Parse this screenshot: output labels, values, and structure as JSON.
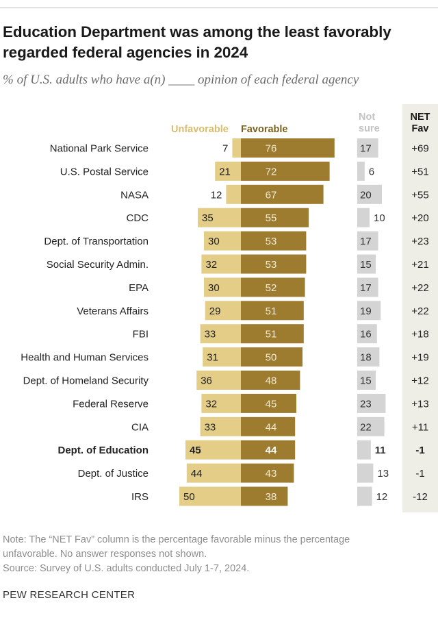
{
  "title": "Education Department was among the least favorably regarded federal agencies in 2024",
  "subtitle": "% of U.S. adults who have a(n) ____ opinion of each federal agency",
  "colors": {
    "unfavorable": "#e3cd87",
    "favorable": "#9e7c2f",
    "not_sure": "#d4d4d4",
    "net_bg": "#eeede6"
  },
  "chart_data": {
    "type": "bar",
    "orientation": "horizontal",
    "stacked": "diverging",
    "column_headers": {
      "unfavorable": "Unfavorable",
      "favorable": "Favorable",
      "not_sure": "Not sure",
      "net": "NET Fav"
    },
    "categories": [
      "National Park Service",
      "U.S. Postal Service",
      "NASA",
      "CDC",
      "Dept. of Transportation",
      "Social Security Admin.",
      "EPA",
      "Veterans Affairs",
      "FBI",
      "Health and Human Services",
      "Dept. of Homeland Security",
      "Federal Reserve",
      "CIA",
      "Dept. of Education",
      "Dept. of Justice",
      "IRS"
    ],
    "highlight": "Dept. of Education",
    "series": [
      {
        "name": "Unfavorable",
        "values": [
          7,
          21,
          12,
          35,
          30,
          32,
          30,
          29,
          33,
          31,
          36,
          32,
          33,
          45,
          44,
          50
        ]
      },
      {
        "name": "Favorable",
        "values": [
          76,
          72,
          67,
          55,
          53,
          53,
          52,
          51,
          51,
          50,
          48,
          45,
          44,
          44,
          43,
          38
        ]
      },
      {
        "name": "Not sure",
        "values": [
          17,
          6,
          20,
          10,
          17,
          15,
          17,
          19,
          16,
          18,
          15,
          23,
          22,
          11,
          13,
          12
        ]
      }
    ],
    "net_fav": [
      "+69",
      "+51",
      "+55",
      "+20",
      "+23",
      "+21",
      "+22",
      "+22",
      "+18",
      "+19",
      "+12",
      "+13",
      "+11",
      "-1",
      "-1",
      "-12"
    ]
  },
  "notes": {
    "line1": "Note: The “NET Fav” column is the percentage favorable minus the percentage",
    "line2": "unfavorable. No answer responses not shown.",
    "line3": "Source: Survey of U.S. adults conducted July 1-7, 2024."
  },
  "footer": "PEW RESEARCH CENTER"
}
